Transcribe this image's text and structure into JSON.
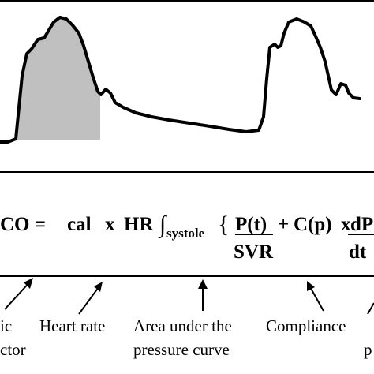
{
  "figure": {
    "waveform": {
      "description_colors": {
        "trace": "#000000",
        "area_fill": "#c0c0c0"
      }
    },
    "equation": {
      "lhs": "CO =",
      "cal": "cal",
      "x1": "x",
      "hr": "HR",
      "integral": "∫",
      "systole": "systole",
      "brace": "{",
      "pt": "P(t)",
      "svr": "SVR",
      "plus": "+",
      "cp": "C(p)",
      "x2": "x",
      "dp": "dP",
      "dt": "dt"
    },
    "labels": {
      "calibration_part1": "ic",
      "calibration_part2": "ctor",
      "heart_rate": "Heart rate",
      "area_line1": "Area under the",
      "area_line2": "pressure curve",
      "compliance": "Compliance",
      "right_fragment": "p"
    }
  }
}
